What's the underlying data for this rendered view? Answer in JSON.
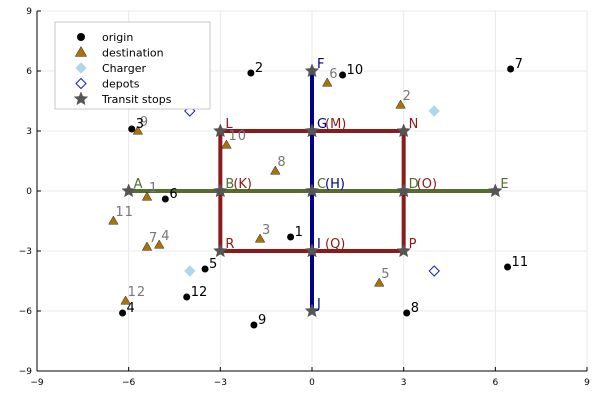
{
  "chart_data": {
    "type": "scatter",
    "xlim": [
      -9,
      9
    ],
    "ylim": [
      -9,
      9
    ],
    "xticks": [
      -9,
      -6,
      -3,
      0,
      3,
      6,
      9
    ],
    "yticks": [
      -9,
      -6,
      -3,
      0,
      3,
      6,
      9
    ],
    "xtick_labels": [
      "−9",
      "−6",
      "−3",
      "0",
      "3",
      "6",
      "9"
    ],
    "ytick_labels": [
      "−9",
      "−6",
      "−3",
      "0",
      "3",
      "6",
      "9"
    ],
    "grid": true,
    "legend_position": "top-left",
    "colors": {
      "origin": "#000000",
      "destination": "#a9720a",
      "charger": "#add8e6",
      "depots": "#1a1ad2",
      "transit": "#555555",
      "route_red": "#8b1a1a",
      "route_green": "#556b2f",
      "route_blue": "#00008b"
    },
    "legend": [
      {
        "name": "origin",
        "marker": "circle",
        "color": "#000000"
      },
      {
        "name": "destination",
        "marker": "triangle",
        "color": "#a9720a"
      },
      {
        "name": "Charger",
        "marker": "diamond",
        "color": "#add8e6"
      },
      {
        "name": "depots",
        "marker": "diamond-open",
        "color": "#1a1ad2"
      },
      {
        "name": "Transit stops",
        "marker": "star",
        "color": "#555555"
      }
    ],
    "lines": [
      {
        "id": "red-loop",
        "color": "#8b1a1a",
        "points": [
          [
            -3,
            3
          ],
          [
            3,
            3
          ],
          [
            3,
            -3
          ],
          [
            -3,
            -3
          ],
          [
            -3,
            3
          ]
        ]
      },
      {
        "id": "green-line",
        "color": "#556b2f",
        "points": [
          [
            -6,
            0
          ],
          [
            6,
            0
          ]
        ]
      },
      {
        "id": "blue-line",
        "color": "#00008b",
        "points": [
          [
            0,
            6
          ],
          [
            0,
            -6
          ]
        ]
      }
    ],
    "origin": [
      {
        "label": "1",
        "x": -0.7,
        "y": -2.3
      },
      {
        "label": "2",
        "x": -2.0,
        "y": 5.9
      },
      {
        "label": "3",
        "x": -5.9,
        "y": 3.1
      },
      {
        "label": "4",
        "x": -6.2,
        "y": -6.1
      },
      {
        "label": "5",
        "x": -3.5,
        "y": -3.9
      },
      {
        "label": "6",
        "x": -4.8,
        "y": -0.4
      },
      {
        "label": "7",
        "x": 6.5,
        "y": 6.1
      },
      {
        "label": "8",
        "x": 3.1,
        "y": -6.1
      },
      {
        "label": "9",
        "x": -1.9,
        "y": -6.7
      },
      {
        "label": "10",
        "x": 1.0,
        "y": 5.8
      },
      {
        "label": "11",
        "x": 6.4,
        "y": -3.8
      },
      {
        "label": "12",
        "x": -4.1,
        "y": -5.3
      }
    ],
    "destination": [
      {
        "label": "1",
        "x": -5.4,
        "y": -0.3
      },
      {
        "label": "2",
        "x": 2.9,
        "y": 4.3
      },
      {
        "label": "3",
        "x": -1.7,
        "y": -2.4
      },
      {
        "label": "4",
        "x": -5.0,
        "y": -2.7
      },
      {
        "label": "5",
        "x": 2.2,
        "y": -4.6
      },
      {
        "label": "6",
        "x": 0.5,
        "y": 5.4
      },
      {
        "label": "7",
        "x": -5.4,
        "y": -2.8
      },
      {
        "label": "8",
        "x": -1.2,
        "y": 1.0
      },
      {
        "label": "9",
        "x": -5.7,
        "y": 3.0
      },
      {
        "label": "10",
        "x": -2.8,
        "y": 2.3
      },
      {
        "label": "11",
        "x": -6.5,
        "y": -1.5
      },
      {
        "label": "12",
        "x": -6.1,
        "y": -5.5
      }
    ],
    "chargers": [
      {
        "x": 4.0,
        "y": 4.0
      },
      {
        "x": -4.0,
        "y": -4.0
      }
    ],
    "depots": [
      {
        "x": 4.0,
        "y": -4.0
      },
      {
        "x": -4.0,
        "y": 4.0
      }
    ],
    "transit_stops": [
      {
        "label": "A",
        "x": -6,
        "y": 0,
        "color": "#556b2f"
      },
      {
        "label": "B",
        "x": -3,
        "y": 0,
        "color": "#556b2f"
      },
      {
        "label": "(K)",
        "x": -3,
        "y": 0,
        "color": "#8b1a1a",
        "label_offset": "after-B"
      },
      {
        "label": "C",
        "x": 0,
        "y": 0,
        "color": "#556b2f"
      },
      {
        "label": "(H)",
        "x": 0,
        "y": 0,
        "color": "#00008b",
        "label_offset": "after-C"
      },
      {
        "label": "D",
        "x": 3,
        "y": 0,
        "color": "#556b2f"
      },
      {
        "label": "(O)",
        "x": 3,
        "y": 0,
        "color": "#8b1a1a",
        "label_offset": "after-D"
      },
      {
        "label": "E",
        "x": 6,
        "y": 0,
        "color": "#556b2f"
      },
      {
        "label": "F",
        "x": 0,
        "y": 6,
        "color": "#00008b"
      },
      {
        "label": "G",
        "x": 0,
        "y": 3,
        "color": "#00008b"
      },
      {
        "label": "(M)",
        "x": 0,
        "y": 3,
        "color": "#8b1a1a",
        "label_offset": "after-G"
      },
      {
        "label": "I",
        "x": 0,
        "y": -3,
        "color": "#00008b"
      },
      {
        "label": "(Q)",
        "x": 0,
        "y": -3,
        "color": "#8b1a1a",
        "label_offset": "after-I"
      },
      {
        "label": "J",
        "x": 0,
        "y": -6,
        "color": "#00008b"
      },
      {
        "label": "L",
        "x": -3,
        "y": 3,
        "color": "#8b1a1a"
      },
      {
        "label": "N",
        "x": 3,
        "y": 3,
        "color": "#8b1a1a"
      },
      {
        "label": "R",
        "x": -3,
        "y": -3,
        "color": "#8b1a1a"
      },
      {
        "label": "P",
        "x": 3,
        "y": -3,
        "color": "#8b1a1a"
      }
    ]
  }
}
